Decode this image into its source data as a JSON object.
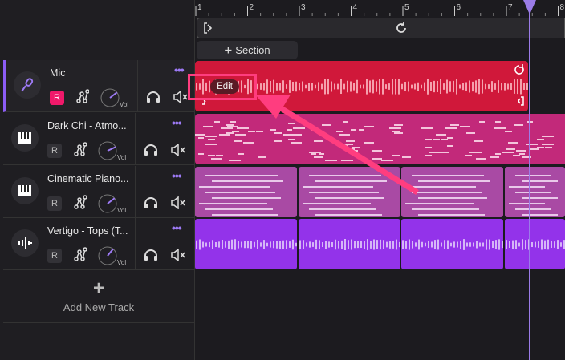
{
  "ruler": {
    "bars": [
      "1",
      "2",
      "3",
      "4",
      "5",
      "6",
      "7",
      "8"
    ]
  },
  "section_button": {
    "label": "Section",
    "icon": "plus-icon"
  },
  "tracks": [
    {
      "name": "Mic",
      "icon": "microphone-icon",
      "record_label": "R",
      "record_armed": true,
      "vol_label": "Vol",
      "volume": 0.6,
      "color": "#d0183a"
    },
    {
      "name": "Dark Chi - Atmo...",
      "icon": "piano-icon",
      "record_label": "R",
      "record_armed": false,
      "vol_label": "Vol",
      "volume": 0.5,
      "color": "#c2297a"
    },
    {
      "name": "Cinematic Piano...",
      "icon": "piano-icon",
      "record_label": "R",
      "record_armed": false,
      "vol_label": "Vol",
      "volume": 0.6,
      "color": "#a94aa4"
    },
    {
      "name": "Vertigo - Tops (T...",
      "icon": "waveform-icon",
      "record_label": "R",
      "record_armed": false,
      "vol_label": "Vol",
      "volume": 0.7,
      "color": "#9333ea"
    }
  ],
  "add_track": {
    "label": "Add New Track"
  },
  "tooltip": {
    "edit": "Edit"
  },
  "colors": {
    "accent": "#8b5cf6",
    "highlight": "#ff3d7f",
    "record": "#f0196a"
  }
}
